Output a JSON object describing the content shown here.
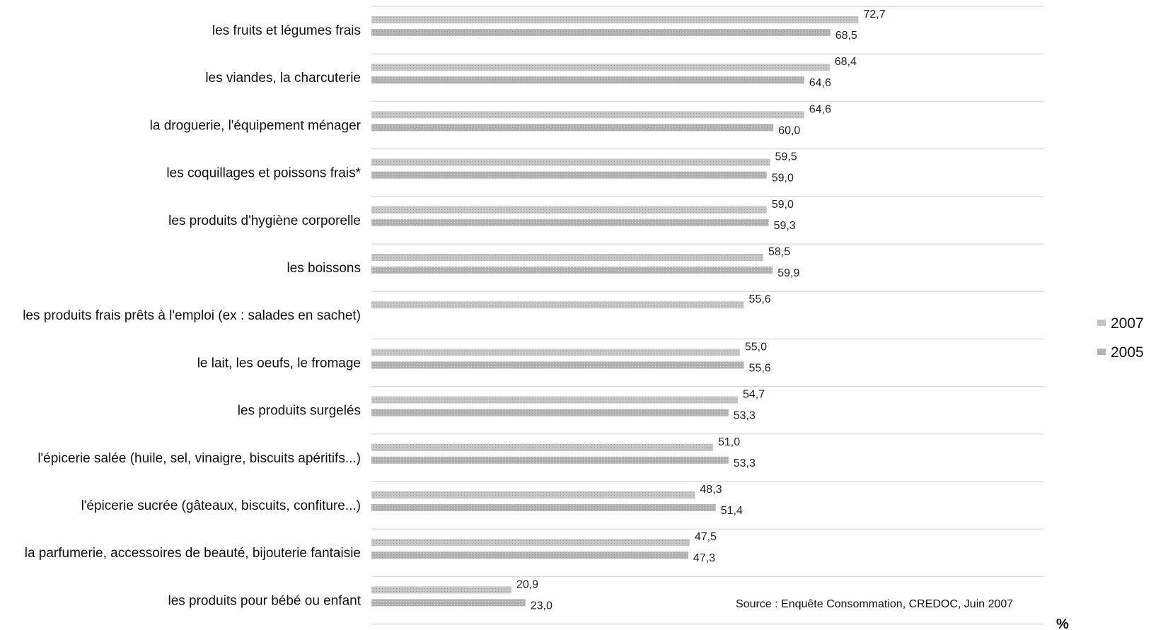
{
  "chart_data": {
    "type": "bar",
    "orientation": "horizontal",
    "categories": [
      "les fruits et légumes frais",
      "les viandes, la charcuterie",
      "la droguerie, l'équipement ménager",
      "les coquillages et poissons frais*",
      "les produits d'hygiène corporelle",
      "les boissons",
      "les produits frais prêts à l'emploi (ex : salades en sachet)",
      "le lait, les oeufs, le fromage",
      "les produits surgelés",
      "l'épicerie salée (huile, sel, vinaigre, biscuits apéritifs...)",
      "l'épicerie sucrée (gâteaux, biscuits, confiture...)",
      "la parfumerie, accessoires de beauté, bijouterie fantaisie",
      "les produits pour bébé ou enfant"
    ],
    "series": [
      {
        "name": "2007",
        "values": [
          72.7,
          68.4,
          64.6,
          59.5,
          59.0,
          58.5,
          55.6,
          55.0,
          54.7,
          51.0,
          48.3,
          47.5,
          20.9
        ],
        "labels": [
          "72,7",
          "68,4",
          "64,6",
          "59,5",
          "59,0",
          "58,5",
          "55,6",
          "55,0",
          "54,7",
          "51,0",
          "48,3",
          "47,5",
          "20,9"
        ]
      },
      {
        "name": "2005",
        "values": [
          68.5,
          64.6,
          60.0,
          59.0,
          59.3,
          59.9,
          null,
          55.6,
          53.3,
          53.3,
          51.4,
          47.3,
          23.0
        ],
        "labels": [
          "68,5",
          "64,6",
          "60,0",
          "59,0",
          "59,3",
          "59,9",
          "",
          "55,6",
          "53,3",
          "53,3",
          "51,4",
          "47,3",
          "23,0"
        ]
      }
    ],
    "xlim": [
      0,
      100
    ],
    "unit_label": "%",
    "source": "Source : Enquête Consommation, CREDOC, Juin 2007",
    "legend_position": "right",
    "grid": true,
    "colors": {
      "2007": "#c4c4c4",
      "2005": "#b3b3b3",
      "grid": "#d6d6d6"
    }
  }
}
